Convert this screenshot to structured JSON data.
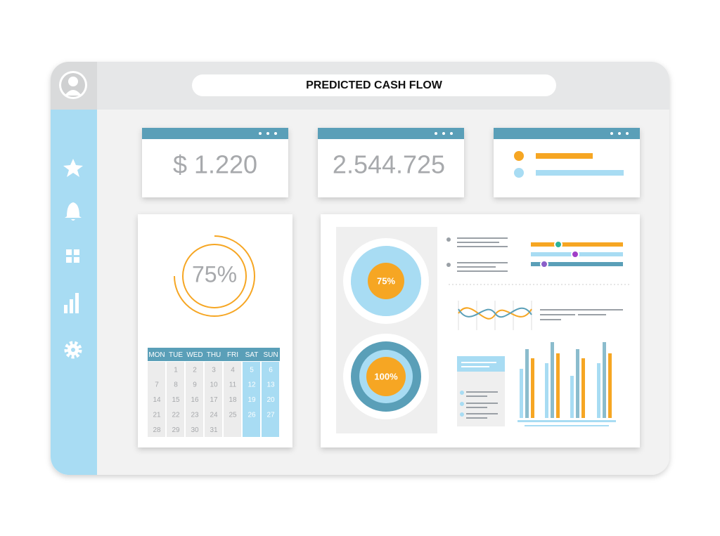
{
  "header": {
    "title": "PREDICTED CASH FLOW"
  },
  "cards": [
    {
      "text": "$ 1.220"
    },
    {
      "text": "2.544.725"
    }
  ],
  "gauge": {
    "label": "75%"
  },
  "calendar": {
    "days": [
      "MON",
      "TUE",
      "WED",
      "THU",
      "FRI",
      "SAT",
      "SUN"
    ],
    "weeks": [
      [
        null,
        "1",
        "2",
        "3",
        "4",
        "5",
        "6"
      ],
      [
        "7",
        "8",
        "9",
        "10",
        "11",
        "12",
        "13"
      ],
      [
        "14",
        "15",
        "16",
        "17",
        "18",
        "19",
        "20"
      ],
      [
        "21",
        "22",
        "23",
        "24",
        "25",
        "26",
        "27"
      ],
      [
        "28",
        "29",
        "30",
        "31",
        null,
        null,
        null
      ]
    ]
  },
  "donuts": [
    {
      "label": "75%"
    },
    {
      "label": "100%"
    }
  ]
}
